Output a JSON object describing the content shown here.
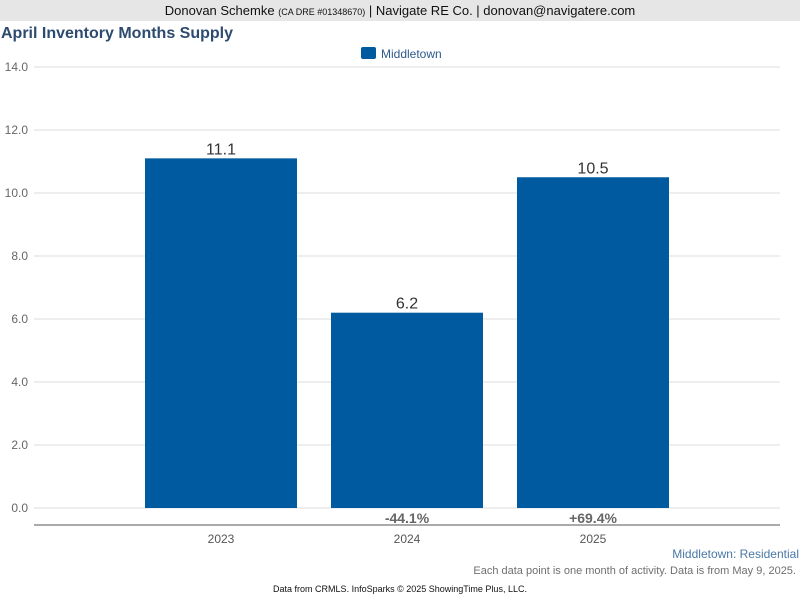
{
  "header": {
    "agent_name": "Donovan Schemke",
    "license": "(CA DRE #01348670)",
    "company_contact": "| Navigate RE Co. | donovan@navigatere.com"
  },
  "chart_data": {
    "type": "bar",
    "title": "April Inventory Months Supply",
    "categories": [
      "2023",
      "2024",
      "2025"
    ],
    "series": [
      {
        "name": "Middletown",
        "values": [
          11.1,
          6.2,
          10.5
        ],
        "color": "#005aa0"
      }
    ],
    "value_labels": [
      "11.1",
      "6.2",
      "10.5"
    ],
    "change_labels": [
      "",
      "-44.1%",
      "+69.4%"
    ],
    "ylim": [
      0,
      14
    ],
    "y_ticks": [
      "0.0",
      "2.0",
      "4.0",
      "6.0",
      "8.0",
      "10.0",
      "12.0",
      "14.0"
    ],
    "grid": true,
    "legend_position": "top-center",
    "subtitle": "Middletown: Residential"
  },
  "footer": {
    "note": "Each data point is one month of activity. Data is from May 9, 2025.",
    "credit": "Data from CRMLS. InfoSparks © 2025 ShowingTime Plus, LLC."
  }
}
